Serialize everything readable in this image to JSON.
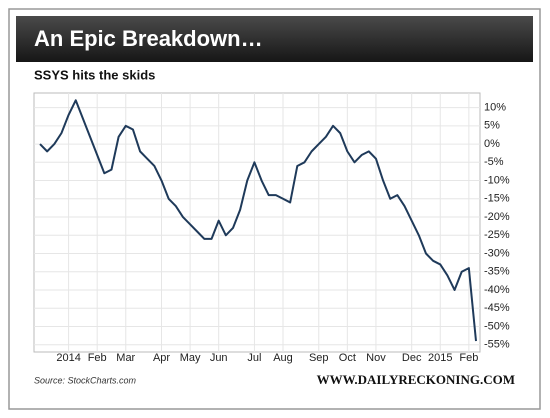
{
  "chart_data": {
    "type": "line",
    "title": "An Epic Breakdown…",
    "subtitle": "SSYS hits the skids",
    "source": "Source: StockCharts.com",
    "credit": "WWW.DAILYRECKONING.COM",
    "categories": [
      null,
      null,
      null,
      null,
      "2014",
      null,
      null,
      null,
      "Feb",
      null,
      null,
      null,
      "Mar",
      null,
      null,
      null,
      null,
      "Apr",
      null,
      null,
      null,
      "May",
      null,
      null,
      null,
      "Jun",
      null,
      null,
      null,
      null,
      "Jul",
      null,
      null,
      null,
      "Aug",
      null,
      null,
      null,
      null,
      "Sep",
      null,
      null,
      null,
      "Oct",
      null,
      null,
      null,
      "Nov",
      null,
      null,
      null,
      null,
      "Dec",
      null,
      null,
      null,
      "2015",
      null,
      null,
      null,
      "Feb",
      null
    ],
    "series": [
      {
        "name": "SSYS",
        "color": "#1f3a5a",
        "values": [
          0,
          -2,
          0,
          3,
          8,
          12,
          7,
          2,
          -3,
          -8,
          -7,
          2,
          5,
          4,
          -2,
          -4,
          -6,
          -10,
          -15,
          -17,
          -20,
          -22,
          -24,
          -26,
          -26,
          -21,
          -25,
          -23,
          -18,
          -10,
          -5,
          -10,
          -14,
          -14,
          -15,
          -16,
          -6,
          -5,
          -2,
          0,
          2,
          5,
          3,
          -2,
          -5,
          -3,
          -2,
          -4,
          -10,
          -15,
          -14,
          -17,
          -21,
          -25,
          -30,
          -32,
          -33,
          -36,
          -40,
          -35,
          -34,
          -54
        ]
      }
    ],
    "ylim": [
      -57,
      14
    ],
    "yticks": [
      {
        "value": 10,
        "label": "10%"
      },
      {
        "value": 5,
        "label": "5%"
      },
      {
        "value": 0,
        "label": "0%"
      },
      {
        "value": -5,
        "label": "-5%"
      },
      {
        "value": -10,
        "label": "-10%"
      },
      {
        "value": -15,
        "label": "-15%"
      },
      {
        "value": -20,
        "label": "-20%"
      },
      {
        "value": -25,
        "label": "-25%"
      },
      {
        "value": -30,
        "label": "-30%"
      },
      {
        "value": -35,
        "label": "-35%"
      },
      {
        "value": -40,
        "label": "-40%"
      },
      {
        "value": -45,
        "label": "-45%"
      },
      {
        "value": -50,
        "label": "-50%"
      },
      {
        "value": -55,
        "label": "-55%"
      }
    ],
    "grid": true
  }
}
